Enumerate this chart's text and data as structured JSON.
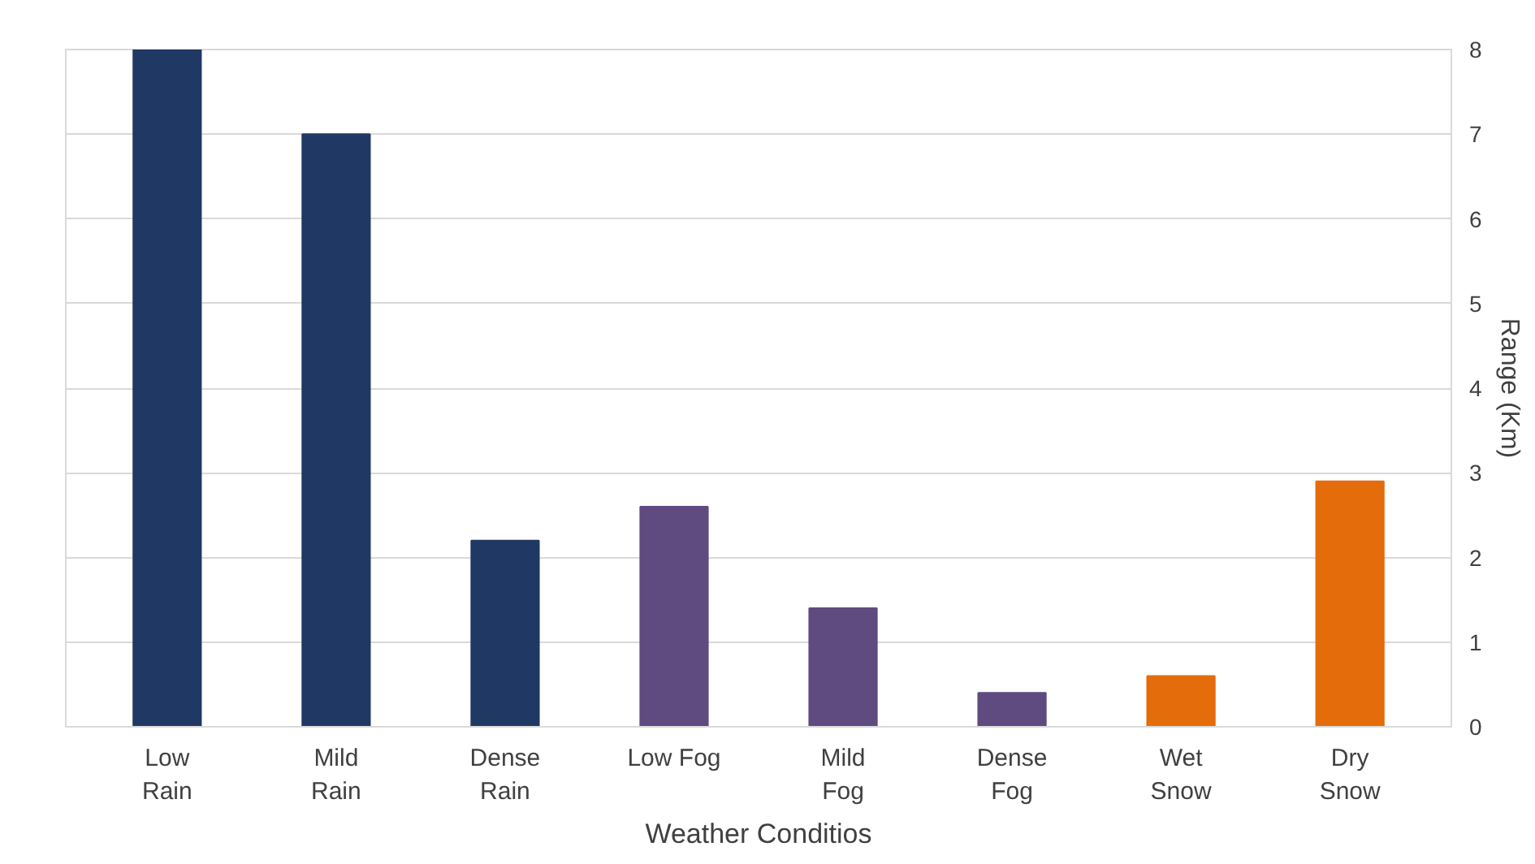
{
  "chart_data": {
    "type": "bar",
    "xlabel": "Weather Conditios",
    "ylabel": "Range (Km)",
    "categories": [
      "Low Rain",
      "Mild Rain",
      "Dense Rain",
      "Low Fog",
      "Mild Fog",
      "Dense Fog",
      "Wet Snow",
      "Dry Snow"
    ],
    "values": [
      8.0,
      7.0,
      2.2,
      2.6,
      1.4,
      0.4,
      0.6,
      2.9
    ],
    "colors": [
      "#203864",
      "#203864",
      "#203864",
      "#5f4b80",
      "#5f4b80",
      "#5f4b80",
      "#e46c0a",
      "#e46c0a"
    ],
    "ylim": [
      0,
      8
    ],
    "yticks": [
      0,
      1,
      2,
      3,
      4,
      5,
      6,
      7,
      8
    ],
    "grid": "y"
  }
}
